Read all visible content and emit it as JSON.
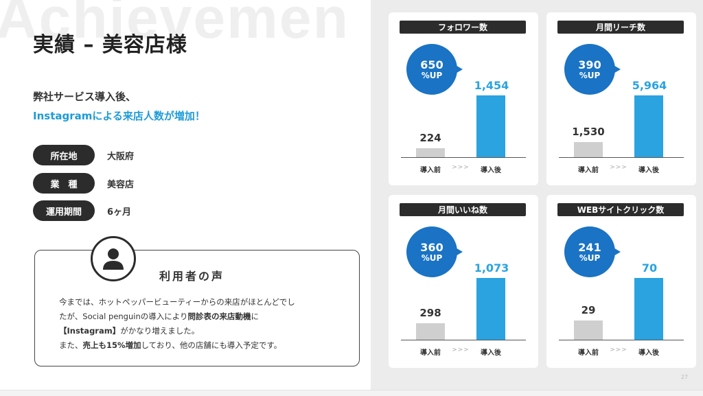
{
  "watermark": "Achievemen",
  "page_number": "27",
  "title": "実績 – 美容店様",
  "lead": {
    "line1": "弊社サービス導入後、",
    "line2": "Instagramによる来店人数が増加！"
  },
  "info": [
    {
      "label": "所在地",
      "value": "大阪府"
    },
    {
      "label": "業　種",
      "value": "美容店"
    },
    {
      "label": "運用期間",
      "value": "6ヶ月"
    }
  ],
  "voice": {
    "title": "利用者の声",
    "line1": "今までは、ホットペッパービューティーからの来店がほとんどでし",
    "line2_a": "たが、Social penguinの導入により",
    "line2_b": "問診表の来店動機",
    "line2_c": "に",
    "line3_a": "【Instagram】",
    "line3_b": "がかなり増えました。",
    "line4_a": "また、",
    "line4_b": "売上も15%増加",
    "line4_c": "しており、他の店舗にも導入予定です。"
  },
  "label_before": "導入前",
  "label_arrow": ">>>",
  "label_after": "導入後",
  "accent_color": "#2aa3e0",
  "bubble_color": "#1a73c4",
  "chart_data": [
    {
      "type": "bar",
      "title": "フォロワー数",
      "categories": [
        "導入前",
        "導入後"
      ],
      "values": [
        224,
        1454
      ],
      "value_labels": [
        "224",
        "1,454"
      ],
      "growth": "650",
      "growth_unit": "%UP"
    },
    {
      "type": "bar",
      "title": "月間リーチ数",
      "categories": [
        "導入前",
        "導入後"
      ],
      "values": [
        1530,
        5964
      ],
      "value_labels": [
        "1,530",
        "5,964"
      ],
      "growth": "390",
      "growth_unit": "%UP"
    },
    {
      "type": "bar",
      "title": "月間いいね数",
      "categories": [
        "導入前",
        "導入後"
      ],
      "values": [
        298,
        1073
      ],
      "value_labels": [
        "298",
        "1,073"
      ],
      "growth": "360",
      "growth_unit": "%UP"
    },
    {
      "type": "bar",
      "title": "WEBサイトクリック数",
      "categories": [
        "導入前",
        "導入後"
      ],
      "values": [
        29,
        70
      ],
      "value_labels": [
        "29",
        "70"
      ],
      "growth": "241",
      "growth_unit": "%UP"
    }
  ]
}
